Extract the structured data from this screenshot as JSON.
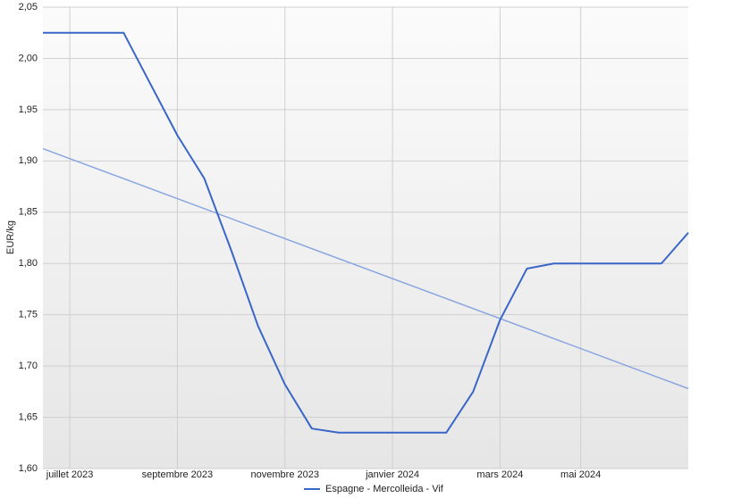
{
  "chart_data": {
    "type": "line",
    "y_label": "EUR/kg",
    "categories": [
      null,
      "juillet 2023",
      null,
      null,
      null,
      "septembre 2023",
      null,
      null,
      null,
      "novembre 2023",
      null,
      null,
      null,
      "janvier 2024",
      null,
      null,
      null,
      "mars 2024",
      null,
      null,
      "mai 2024",
      null,
      null,
      null,
      null
    ],
    "series": [
      {
        "name": "Espagne - Mercolleida - Vif",
        "color": "#3a66c8",
        "values": [
          2.025,
          2.025,
          2.025,
          2.025,
          1.975,
          1.925,
          1.883,
          1.813,
          1.739,
          1.682,
          1.639,
          1.635,
          1.635,
          1.635,
          1.635,
          1.635,
          1.675,
          1.745,
          1.795,
          1.8,
          1.8,
          1.8,
          1.8,
          1.8,
          1.83
        ]
      }
    ],
    "trendline": {
      "color": "#8aa6e0",
      "values": [
        1.912,
        1.678
      ]
    },
    "ylim": [
      1.6,
      2.05
    ],
    "yticks": [
      {
        "value": 1.6,
        "label": "1,60"
      },
      {
        "value": 1.65,
        "label": "1,65"
      },
      {
        "value": 1.7,
        "label": "1,70"
      },
      {
        "value": 1.75,
        "label": "1,75"
      },
      {
        "value": 1.8,
        "label": "1,80"
      },
      {
        "value": 1.85,
        "label": "1,85"
      },
      {
        "value": 1.9,
        "label": "1,90"
      },
      {
        "value": 1.95,
        "label": "1,95"
      },
      {
        "value": 2.0,
        "label": "2,00"
      },
      {
        "value": 2.05,
        "label": "2,05"
      }
    ],
    "grid": true,
    "legend": "bottom"
  }
}
